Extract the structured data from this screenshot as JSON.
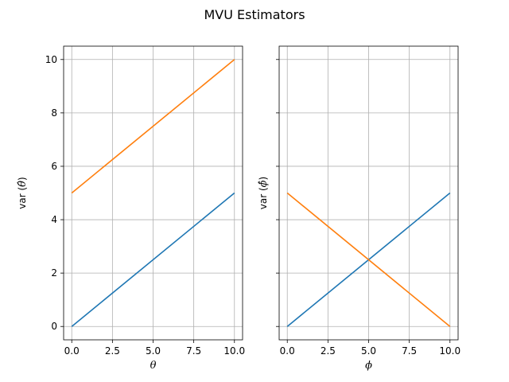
{
  "figure": {
    "title": "MVU Estimators"
  },
  "chart_data": [
    {
      "type": "line",
      "xlabel": "θ",
      "ylabel_prefix": "var (",
      "ylabel_symbol": "θ̂",
      "ylabel_suffix": ")",
      "xlim": [
        -0.5,
        10.5
      ],
      "ylim": [
        -0.5,
        10.5
      ],
      "xticks": [
        0.0,
        2.5,
        5.0,
        7.5,
        10.0
      ],
      "xtick_labels": [
        "0.0",
        "2.5",
        "5.0",
        "7.5",
        "10.0"
      ],
      "yticks": [
        0,
        2,
        4,
        6,
        8,
        10
      ],
      "ytick_labels": [
        "0",
        "2",
        "4",
        "6",
        "8",
        "10"
      ],
      "grid": true,
      "series": [
        {
          "x": [
            0,
            10
          ],
          "y": [
            0,
            5
          ],
          "color": "#1f77b4"
        },
        {
          "x": [
            0,
            10
          ],
          "y": [
            5,
            10
          ],
          "color": "#ff7f0e"
        }
      ]
    },
    {
      "type": "line",
      "xlabel": "ϕ",
      "ylabel_prefix": "var (",
      "ylabel_symbol": "ϕ̂",
      "ylabel_suffix": ")",
      "xlim": [
        -0.5,
        10.5
      ],
      "ylim": [
        -0.5,
        10.5
      ],
      "xticks": [
        0.0,
        2.5,
        5.0,
        7.5,
        10.0
      ],
      "xtick_labels": [
        "0.0",
        "2.5",
        "5.0",
        "7.5",
        "10.0"
      ],
      "yticks": [
        0,
        2,
        4,
        6,
        8,
        10
      ],
      "ytick_labels": [],
      "grid": true,
      "series": [
        {
          "x": [
            0,
            10
          ],
          "y": [
            0,
            5
          ],
          "color": "#1f77b4"
        },
        {
          "x": [
            0,
            10
          ],
          "y": [
            5,
            0
          ],
          "color": "#ff7f0e"
        }
      ]
    }
  ]
}
